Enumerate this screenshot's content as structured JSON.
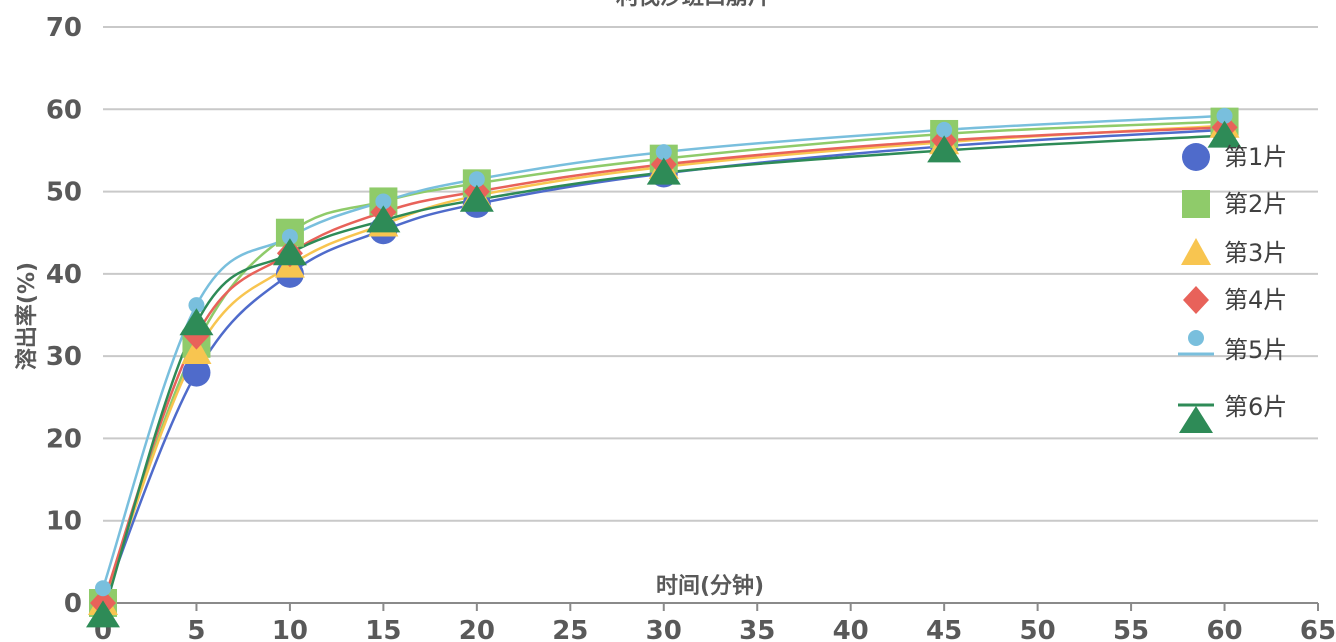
{
  "chart_data": {
    "type": "line",
    "title": "利伐沙班口崩片",
    "xlabel": "时间(分钟)",
    "ylabel": "溶出率(%)",
    "xlim": [
      0,
      65
    ],
    "ylim": [
      0,
      70
    ],
    "x_ticks": [
      "0",
      "5",
      "10",
      "15",
      "20",
      "25",
      "30",
      "35",
      "40",
      "45",
      "50",
      "55",
      "60",
      "65"
    ],
    "y_ticks": [
      "0",
      "10",
      "20",
      "30",
      "40",
      "50",
      "60",
      "70"
    ],
    "grid": true,
    "legend_position": "right",
    "x": [
      0,
      5,
      10,
      15,
      20,
      30,
      45,
      60
    ],
    "series": [
      {
        "name": "第1片",
        "marker": "circle",
        "color": "#4f6bcb",
        "values": [
          0,
          28,
          40,
          45.3,
          48.5,
          52.2,
          55.5,
          57.5
        ]
      },
      {
        "name": "第2片",
        "marker": "square",
        "color": "#8fcb6a",
        "values": [
          0,
          31.5,
          45,
          48.8,
          51,
          54,
          57,
          58.5
        ]
      },
      {
        "name": "第3片",
        "marker": "triangle-up",
        "color": "#f8c550",
        "values": [
          0,
          30.5,
          41,
          46,
          49.5,
          53,
          56,
          58
        ]
      },
      {
        "name": "第4片",
        "marker": "diamond",
        "color": "#e8625a",
        "values": [
          0,
          32.5,
          42.5,
          47.5,
          50,
          53.3,
          56.2,
          57.8
        ]
      },
      {
        "name": "第5片",
        "marker": "pin",
        "color": "#79bfdd",
        "values": [
          1.8,
          36.2,
          44.5,
          48.8,
          51.5,
          54.8,
          57.5,
          59.2
        ]
      },
      {
        "name": "第6片",
        "marker": "triangle-down",
        "color": "#2e8b57",
        "values": [
          -1.5,
          34,
          42.5,
          46.5,
          49,
          52.3,
          55,
          56.8
        ]
      }
    ]
  }
}
